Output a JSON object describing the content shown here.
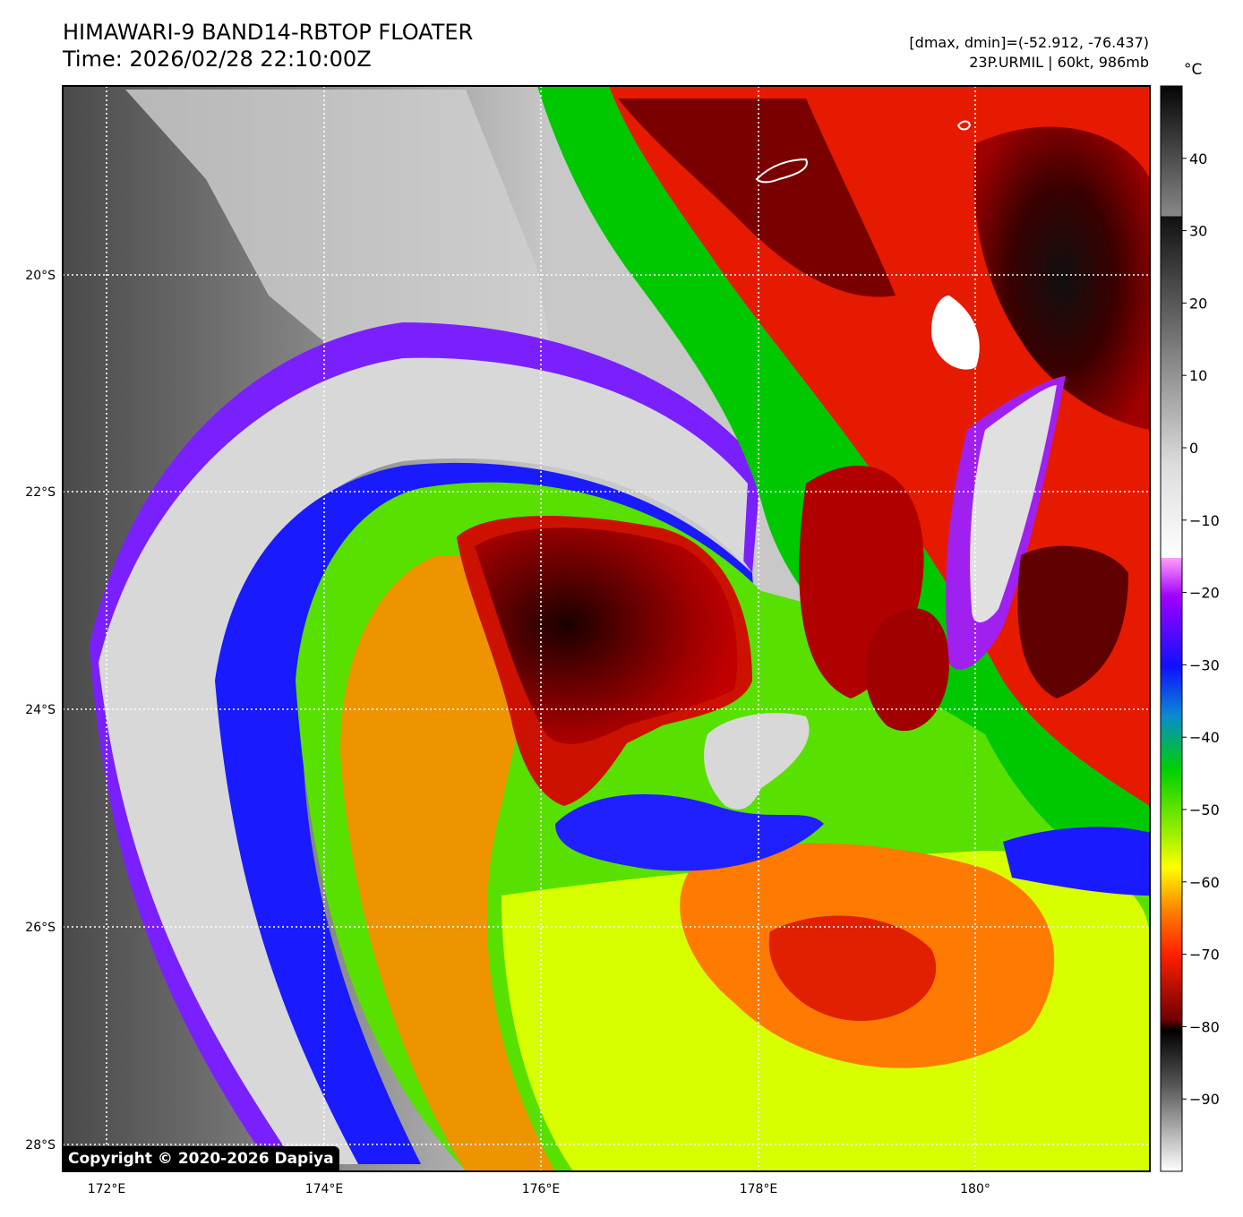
{
  "header": {
    "title_line1": "HIMAWARI-9 BAND14-RBTOP FLOATER",
    "title_line2": "Time: 2026/02/28 22:10:00Z",
    "info_line1": "[dmax, dmin]=(-52.912, -76.437)",
    "info_line2": "23P.URMIL | 60kt, 986mb"
  },
  "colorbar": {
    "unit": "°C",
    "ticks": [
      "40",
      "30",
      "20",
      "10",
      "0",
      "−10",
      "−20",
      "−30",
      "−40",
      "−50",
      "−60",
      "−70",
      "−80",
      "−90"
    ],
    "range": [
      -100,
      50
    ]
  },
  "map": {
    "lat_labels": [
      "20°S",
      "22°S",
      "24°S",
      "26°S",
      "28°S"
    ],
    "lon_labels": [
      "172°E",
      "174°E",
      "176°E",
      "178°E",
      "180°"
    ],
    "lon_range": [
      171.6,
      181.6
    ],
    "lat_range": [
      -28.2,
      -18.25
    ],
    "gridlines": "dotted white"
  },
  "copyright": "Copyright © 2020-2026 Dapiya"
}
